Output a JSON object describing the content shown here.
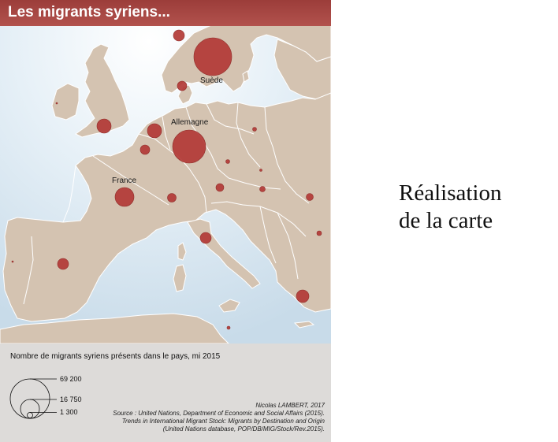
{
  "title": "Les migrants syriens...",
  "labels": {
    "suede": "Suède",
    "allemagne": "Allemagne",
    "france": "France"
  },
  "legend": {
    "title": "Nombre de migrants syriens présents dans le pays, mi 2015",
    "values": [
      "69 200",
      "16 750",
      "1 300"
    ]
  },
  "credits": {
    "author": "Nicolas LAMBERT, 2017",
    "source1": "Source : United Nations, Department of Economic and Social Affairs (2015).",
    "source2": "Trends in International Migrant Stock: Migrants by Destination and Origin",
    "source3": "(United Nations database, POP/DB/MIG/Stock/Rev.2015)."
  },
  "side_text": {
    "line1": "Réalisation",
    "line2": "de la carte"
  },
  "colors": {
    "sea": "#dbe9f3",
    "land": "#d4c3b1",
    "border": "#ffffff",
    "symbol": "#b23a36",
    "symbol_stroke": "#8a2a27",
    "title_bar": "#a8453f",
    "legend_bg": "#dddbd9"
  }
}
